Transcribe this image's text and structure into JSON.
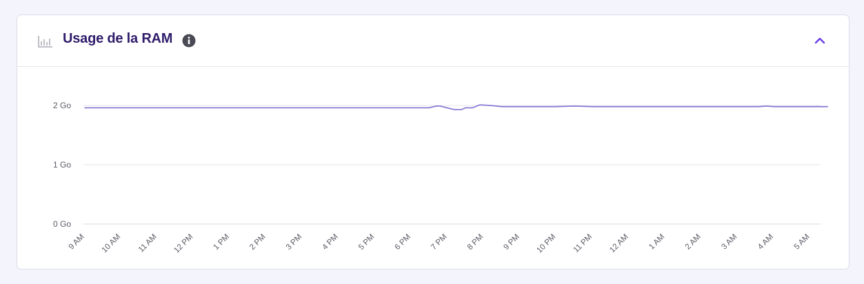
{
  "card": {
    "title": "Usage de la RAM",
    "icons": {
      "chart": "bar-chart-icon",
      "info": "info-icon",
      "collapse": "chevron-up-icon"
    }
  },
  "colors": {
    "series_line": "#8c7ad6",
    "title": "#2f1c6a",
    "accent": "#673de6",
    "grid": "#e6e6ee",
    "tick_label": "#5b5b66"
  },
  "chart_data": {
    "type": "line",
    "title": "Usage de la RAM",
    "xlabel": "",
    "ylabel": "",
    "ylim": [
      0,
      2
    ],
    "yticks": [
      {
        "value": 0,
        "label": "0 Go"
      },
      {
        "value": 1,
        "label": "1 Go"
      },
      {
        "value": 2,
        "label": "2 Go"
      }
    ],
    "xticks": [
      "9 AM",
      "10 AM",
      "11 AM",
      "12 PM",
      "1 PM",
      "2 PM",
      "3 PM",
      "4 PM",
      "5 PM",
      "6 PM",
      "7 PM",
      "8 PM",
      "9 PM",
      "10 PM",
      "11 PM",
      "12 AM",
      "1 AM",
      "2 AM",
      "3 AM",
      "4 AM",
      "5 AM"
    ],
    "grid": true,
    "legend": "none",
    "series": [
      {
        "x": [
          0,
          1,
          2,
          3,
          4,
          5,
          6,
          7,
          8,
          9,
          9.5,
          9.7,
          9.8,
          10.2,
          10.4,
          10.5,
          10.7,
          10.9,
          11.2,
          11.5,
          12,
          13,
          13.5,
          14,
          15,
          16,
          17,
          17.5,
          18,
          18.6,
          18.8,
          19,
          19.5,
          20,
          20.5
        ],
        "y": [
          1.96,
          1.96,
          1.96,
          1.96,
          1.96,
          1.96,
          1.96,
          1.96,
          1.96,
          1.96,
          1.96,
          1.99,
          1.99,
          1.93,
          1.93,
          1.96,
          1.96,
          2.01,
          2.0,
          1.98,
          1.98,
          1.98,
          1.99,
          1.98,
          1.98,
          1.98,
          1.98,
          1.98,
          1.98,
          1.98,
          1.99,
          1.98,
          1.98,
          1.98,
          1.98
        ]
      }
    ]
  }
}
